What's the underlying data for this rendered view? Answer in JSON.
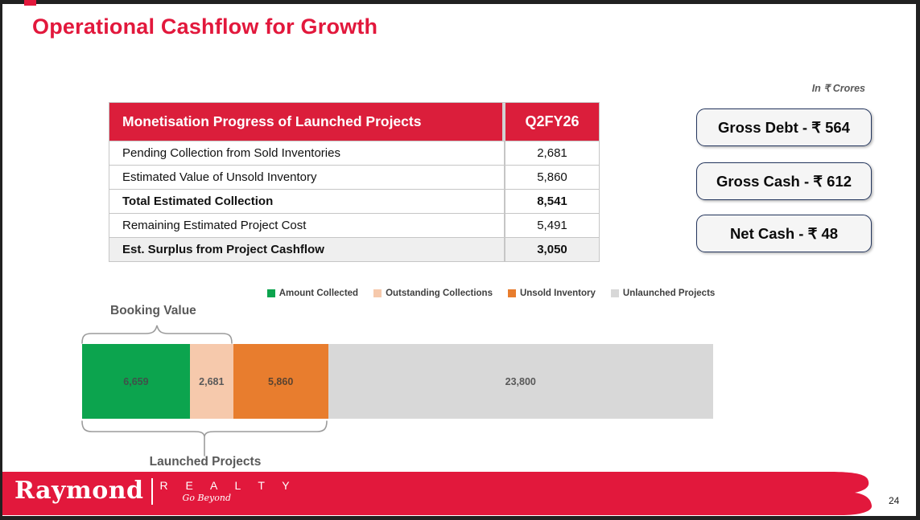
{
  "slide": {
    "title": "Operational Cashflow for Growth",
    "units_note": "In ₹ Crores",
    "page_number": "24"
  },
  "table": {
    "header": {
      "label": "Monetisation Progress of Launched Projects",
      "period": "Q2FY26"
    },
    "rows": [
      {
        "label": "Pending Collection from Sold Inventories",
        "value": "2,681"
      },
      {
        "label": "Estimated Value of Unsold Inventory",
        "value": "5,860"
      },
      {
        "label": "Total Estimated Collection",
        "value": "8,541"
      },
      {
        "label": "Remaining Estimated Project Cost",
        "value": "5,491"
      },
      {
        "label": "Est. Surplus from Project Cashflow",
        "value": "3,050"
      }
    ]
  },
  "stat_boxes": [
    {
      "label": "Gross Debt - ₹ 564"
    },
    {
      "label": "Gross Cash - ₹ 612"
    },
    {
      "label": "Net Cash - ₹ 48"
    }
  ],
  "chart_data": {
    "type": "bar",
    "subtype": "horizontal-stacked-single-row",
    "units": "₹ Crores",
    "categories": [
      "Q2FY26"
    ],
    "series": [
      {
        "name": "Amount Collected",
        "value": 6659,
        "label": "6,659",
        "color": "#0CA44E",
        "label_color": "#3F514A"
      },
      {
        "name": "Outstanding Collections",
        "value": 2681,
        "label": "2,681",
        "color": "#F6C9AC",
        "label_color": "#595959"
      },
      {
        "name": "Unsold Inventory",
        "value": 5860,
        "label": "5,860",
        "color": "#E87D2E",
        "label_color": "#5A4330"
      },
      {
        "name": "Unlaunched Projects",
        "value": 23800,
        "label": "23,800",
        "color": "#D8D8D8",
        "label_color": "#595959"
      }
    ],
    "total": 39000,
    "legend_position": "top-center",
    "annotations": [
      {
        "label": "Booking Value",
        "span_series": [
          "Amount Collected",
          "Outstanding Collections"
        ],
        "position": "above"
      },
      {
        "label": "Launched Projects",
        "span_series": [
          "Amount Collected",
          "Outstanding Collections",
          "Unsold Inventory"
        ],
        "position": "below"
      }
    ]
  },
  "footer": {
    "brand": "Raymond",
    "division": "R E A L T Y",
    "tagline": "Go Beyond"
  },
  "colors": {
    "brand_red": "#E2183C",
    "table_header_bg": "#DB1E3B",
    "stat_box_border": "#24365E",
    "stat_box_bg": "#F5F5F5",
    "shaded_row_bg": "#EFEFEF",
    "frame": "#212121"
  }
}
